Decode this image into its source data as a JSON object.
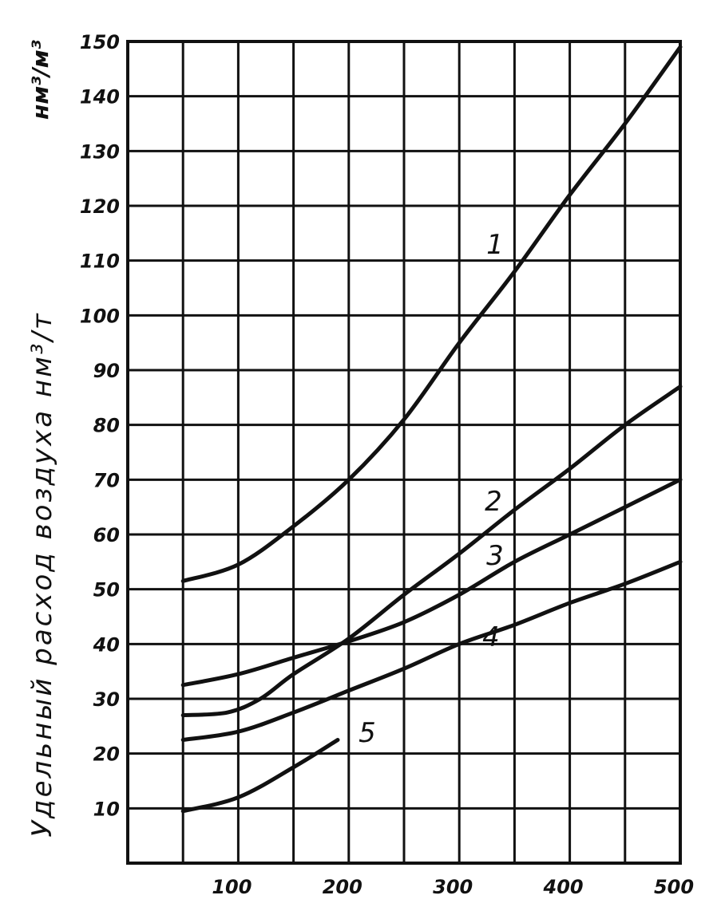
{
  "chart_data": {
    "type": "line",
    "title": "",
    "ylabel": "Удельный расход воздуха нм³/т",
    "ylabel_alt_unit": "нм³/м³",
    "xlabel": "",
    "xlim": [
      0,
      500
    ],
    "ylim": [
      0,
      150
    ],
    "x_tick_labels": [
      "100",
      "200",
      "300",
      "400",
      "500"
    ],
    "y_tick_labels": [
      "10",
      "20",
      "30",
      "40",
      "50",
      "60",
      "70",
      "80",
      "90",
      "100",
      "110",
      "120",
      "130",
      "140",
      "150"
    ],
    "grid": true,
    "series": [
      {
        "name": "1",
        "x": [
          50,
          100,
          150,
          200,
          250,
          300,
          350,
          400,
          450,
          500
        ],
        "y": [
          51.5,
          54.5,
          61.5,
          70,
          81,
          95,
          108,
          122,
          135,
          149
        ]
      },
      {
        "name": "2",
        "x": [
          50,
          90,
          120,
          150,
          200,
          250,
          300,
          350,
          400,
          450,
          500
        ],
        "y": [
          27,
          27.5,
          30,
          34.5,
          41,
          49,
          56.5,
          64.5,
          72,
          80,
          87
        ]
      },
      {
        "name": "3",
        "x": [
          50,
          100,
          150,
          200,
          250,
          300,
          350,
          400,
          450,
          500
        ],
        "y": [
          32.5,
          34.5,
          37.5,
          40.5,
          44,
          49,
          55,
          60,
          65,
          70
        ]
      },
      {
        "name": "4",
        "x": [
          50,
          100,
          150,
          200,
          250,
          300,
          350,
          400,
          450,
          500
        ],
        "y": [
          22.5,
          24,
          27.5,
          31.5,
          35.5,
          40,
          43.5,
          47.5,
          51,
          55
        ]
      },
      {
        "name": "5",
        "x": [
          50,
          100,
          150,
          190
        ],
        "y": [
          9.5,
          12,
          17.5,
          22.5
        ]
      }
    ]
  }
}
